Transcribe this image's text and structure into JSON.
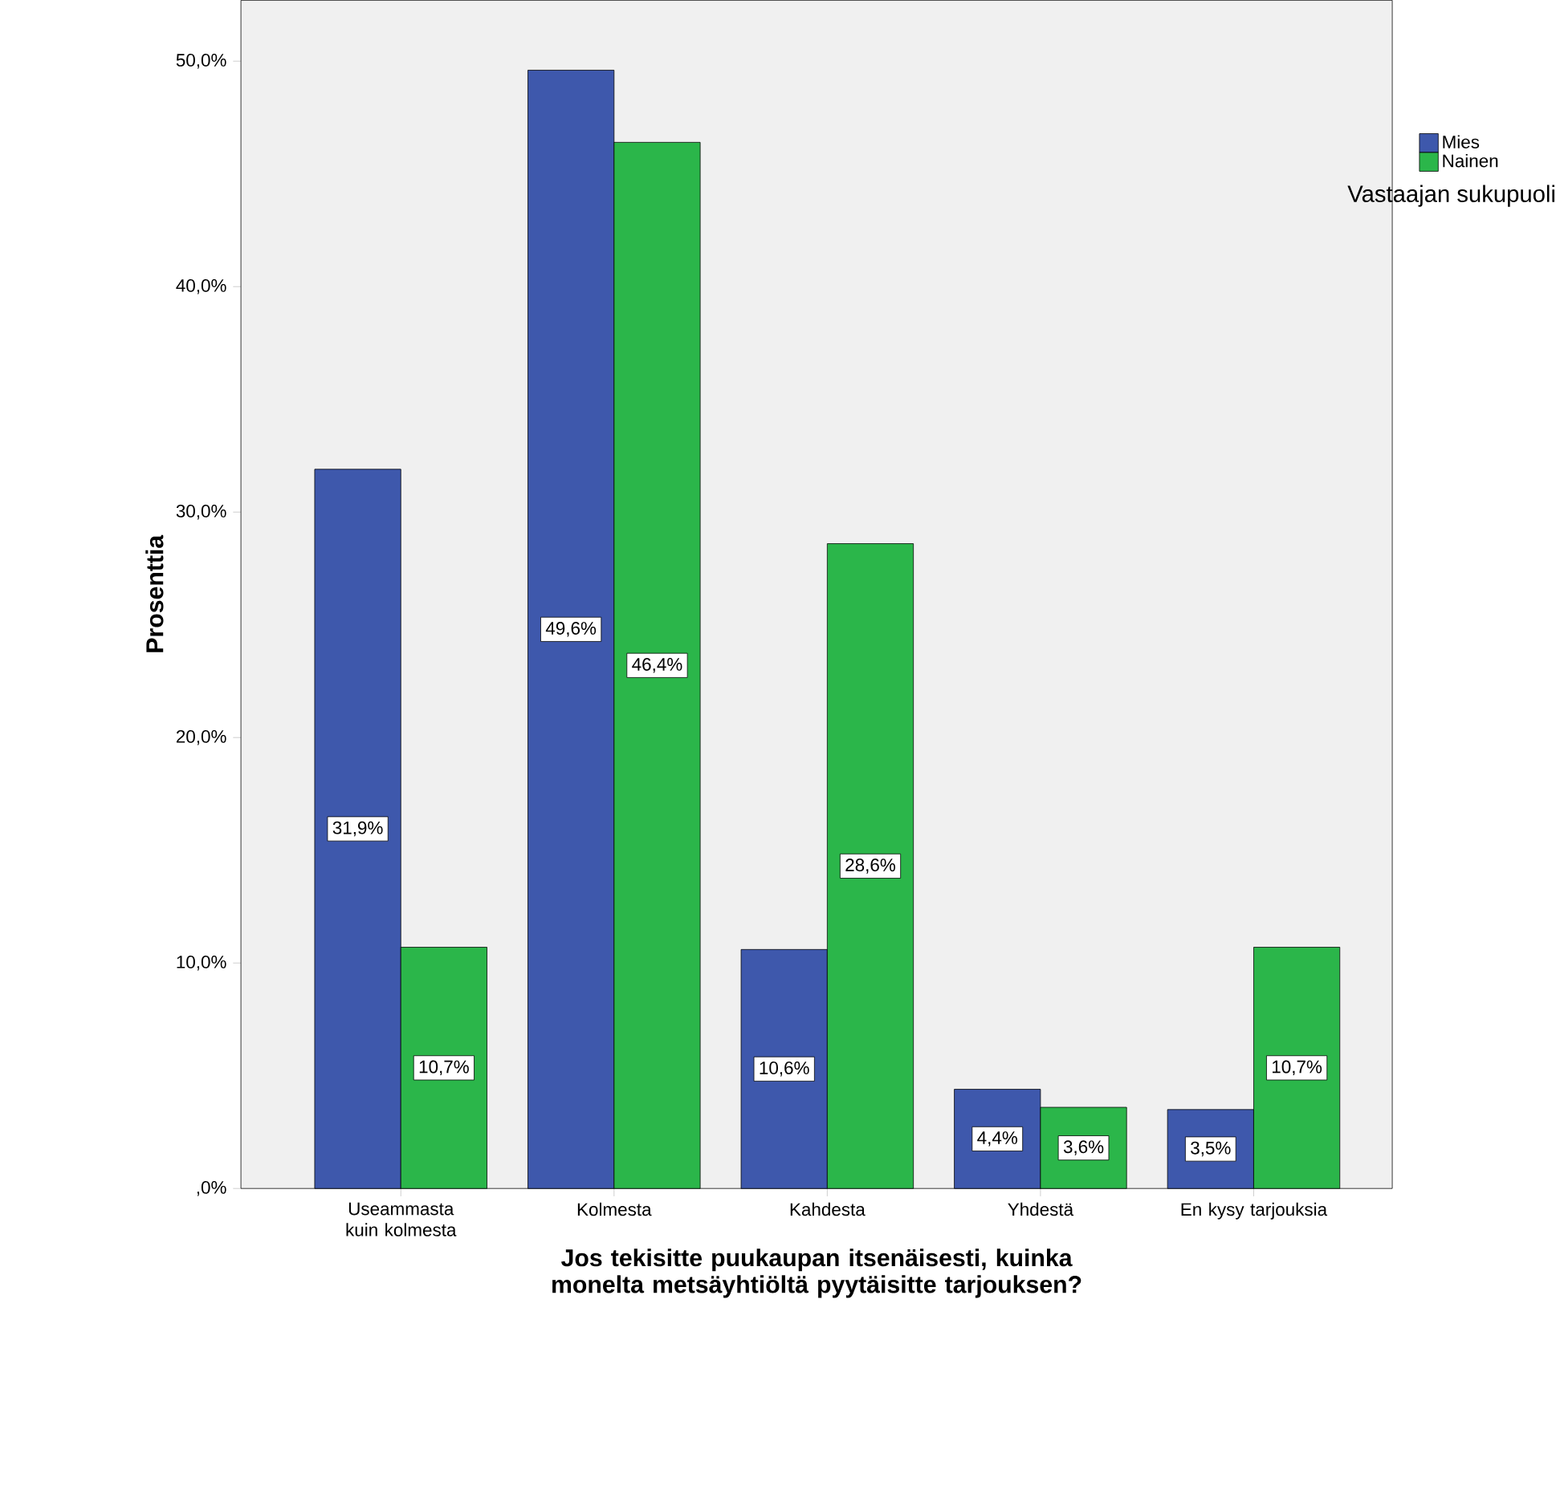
{
  "chart_data": {
    "type": "bar",
    "xlabel": "Jos tekisitte puukaupan itsenäisesti, kuinka monelta metsäyhtiöltä pyytäisitte tarjouksen?",
    "ylabel": "Prosenttia",
    "legend_title": "Vastaajan sukupuoli",
    "categories": [
      "Useammasta kuin kolmesta",
      "Kolmesta",
      "Kahdesta",
      "Yhdestä",
      "En kysy tarjouksia"
    ],
    "series": [
      {
        "name": "Mies",
        "color": "#3e58ac",
        "values": [
          31.9,
          49.6,
          10.6,
          4.4,
          3.5
        ],
        "value_labels": [
          "31,9%",
          "49,6%",
          "10,6%",
          "4,4%",
          "3,5%"
        ]
      },
      {
        "name": "Nainen",
        "color": "#2bb64a",
        "values": [
          10.7,
          46.4,
          28.6,
          3.6,
          10.7
        ],
        "value_labels": [
          "10,7%",
          "46,4%",
          "28,6%",
          "3,6%",
          "10,7%"
        ]
      }
    ],
    "ylim": [
      0,
      52.7
    ],
    "yticks": [
      {
        "value": 0,
        "label": ",0%"
      },
      {
        "value": 10,
        "label": "10,0%"
      },
      {
        "value": 20,
        "label": "20,0%"
      },
      {
        "value": 30,
        "label": "30,0%"
      },
      {
        "value": 40,
        "label": "40,0%"
      },
      {
        "value": 50,
        "label": "50,0%"
      }
    ],
    "grid": false,
    "legend": "top right"
  }
}
